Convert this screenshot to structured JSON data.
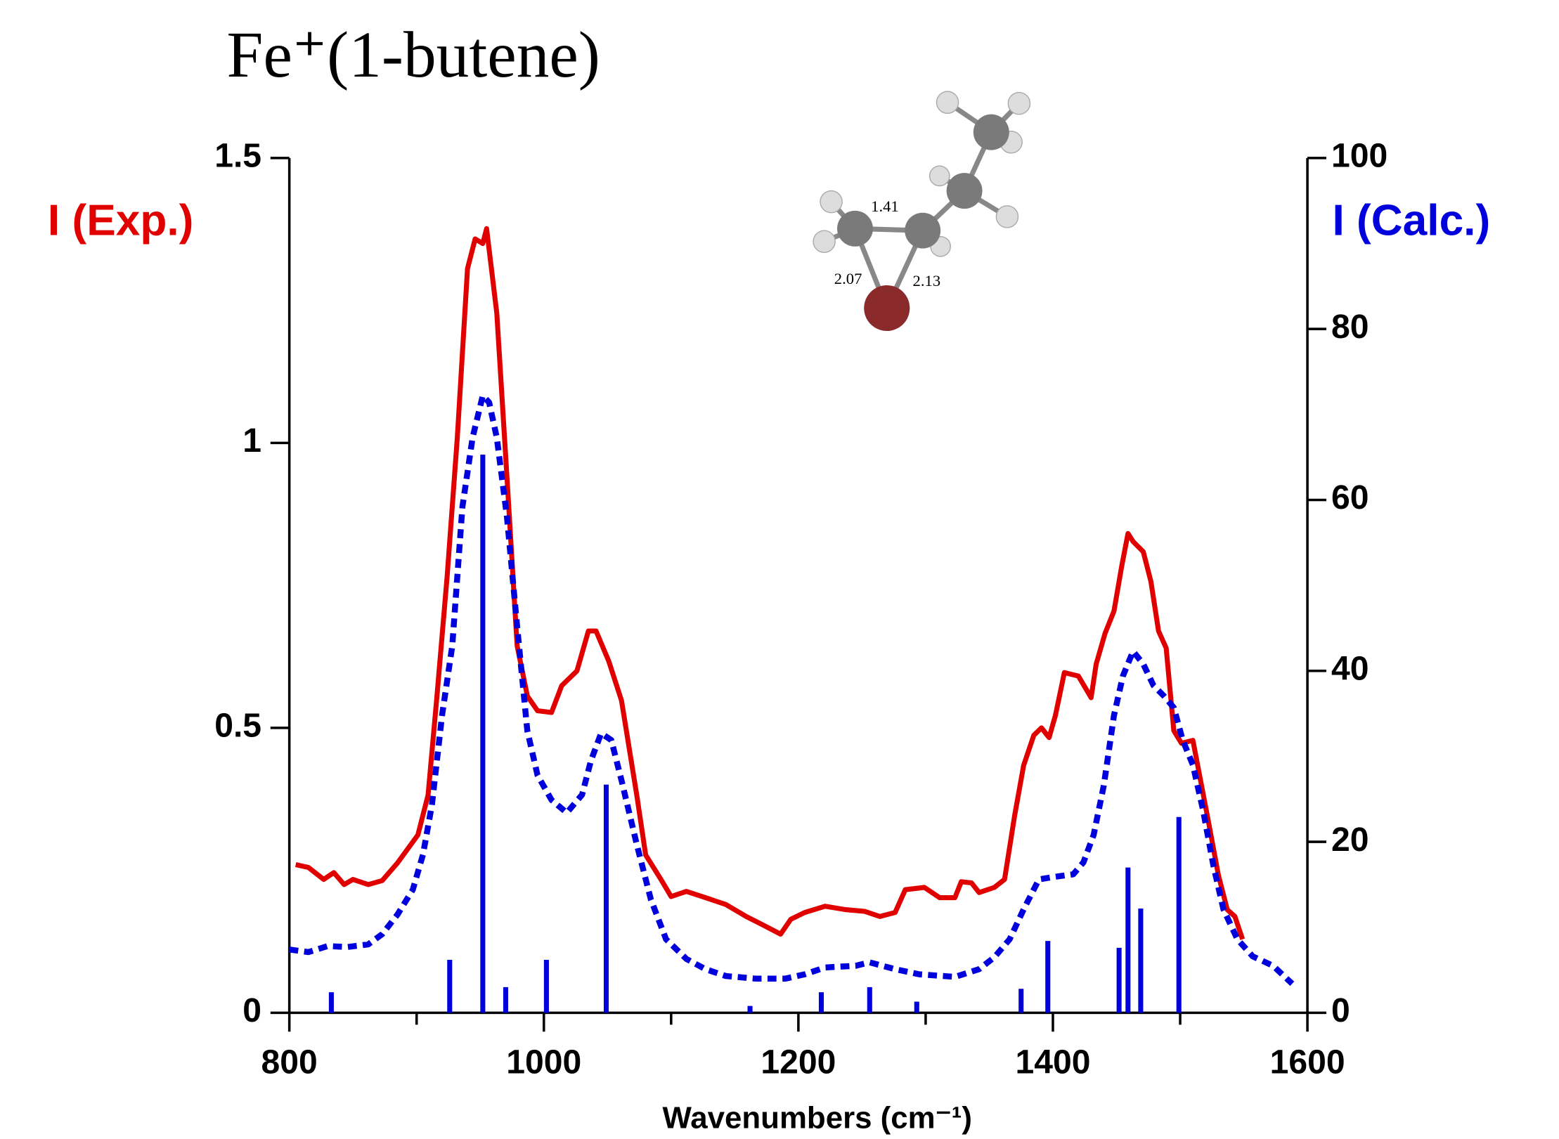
{
  "chart_data": {
    "type": "line",
    "title": "Fe⁺(1-butene)",
    "xlabel": "Wavenumbers (cm⁻¹)",
    "ylabel": "I (Exp.)",
    "y2label": "I (Calc.)",
    "annotations": [
      "1.41",
      "2.07",
      "2.13"
    ],
    "xlim": [
      800,
      1600
    ],
    "xticks": [
      800,
      1000,
      1200,
      1400,
      1600
    ],
    "ylim": [
      0,
      1.5
    ],
    "yticks": [
      0,
      0.5,
      1,
      1.5
    ],
    "y2lim": [
      0,
      100
    ],
    "y2ticks": [
      0,
      20,
      40,
      60,
      80,
      100
    ],
    "series": [
      {
        "color": "#e00000",
        "style": "solid",
        "x": [
          805,
          815,
          827,
          835,
          843,
          850,
          862,
          873,
          885,
          901,
          909,
          916,
          924,
          932,
          940,
          946,
          952,
          955,
          963,
          971,
          979,
          987,
          995,
          1006,
          1014,
          1026,
          1035,
          1041,
          1051,
          1061,
          1073,
          1080,
          1092,
          1100,
          1112,
          1127,
          1143,
          1159,
          1174,
          1186,
          1194,
          1205,
          1221,
          1237,
          1252,
          1264,
          1276,
          1284,
          1299,
          1311,
          1323,
          1328,
          1336,
          1342,
          1354,
          1362,
          1370,
          1377,
          1385,
          1391,
          1397,
          1402,
          1409,
          1420,
          1430,
          1434,
          1441,
          1448,
          1454,
          1459,
          1463,
          1471,
          1477,
          1483,
          1489,
          1495,
          1501,
          1510,
          1522,
          1530,
          1537,
          1543,
          1549
        ],
        "values": [
          0.26,
          0.255,
          0.234,
          0.246,
          0.225,
          0.234,
          0.225,
          0.232,
          0.263,
          0.312,
          0.382,
          0.556,
          0.766,
          1.01,
          1.306,
          1.358,
          1.35,
          1.376,
          1.228,
          0.94,
          0.644,
          0.556,
          0.53,
          0.527,
          0.574,
          0.6,
          0.67,
          0.67,
          0.617,
          0.548,
          0.382,
          0.277,
          0.234,
          0.204,
          0.213,
          0.202,
          0.19,
          0.169,
          0.152,
          0.138,
          0.164,
          0.176,
          0.187,
          0.181,
          0.178,
          0.169,
          0.176,
          0.216,
          0.22,
          0.202,
          0.202,
          0.23,
          0.228,
          0.211,
          0.22,
          0.234,
          0.347,
          0.434,
          0.487,
          0.5,
          0.483,
          0.522,
          0.597,
          0.591,
          0.553,
          0.612,
          0.666,
          0.705,
          0.783,
          0.841,
          0.827,
          0.809,
          0.757,
          0.67,
          0.64,
          0.495,
          0.473,
          0.478,
          0.338,
          0.242,
          0.181,
          0.169,
          0.129
        ]
      },
      {
        "color": "#0000dd",
        "style": "dashed",
        "axis": "y2",
        "x": [
          800,
          815,
          830,
          846,
          862,
          873,
          885,
          897,
          905,
          912,
          920,
          928,
          936,
          944,
          952,
          957,
          963,
          971,
          979,
          987,
          995,
          1006,
          1018,
          1030,
          1037,
          1045,
          1053,
          1061,
          1073,
          1084,
          1096,
          1112,
          1127,
          1143,
          1166,
          1190,
          1205,
          1221,
          1245,
          1256,
          1276,
          1295,
          1323,
          1342,
          1354,
          1366,
          1377,
          1389,
          1401,
          1416,
          1424,
          1432,
          1440,
          1448,
          1455,
          1463,
          1471,
          1479,
          1487,
          1495,
          1502,
          1510,
          1518,
          1526,
          1534,
          1545,
          1557,
          1573,
          1588
        ],
        "values": [
          7.4,
          7.1,
          7.8,
          7.7,
          8.0,
          9.2,
          11.5,
          14.4,
          18.5,
          24.3,
          34.8,
          42.9,
          59.2,
          67.3,
          72.2,
          71.4,
          67.3,
          58.0,
          45.2,
          33.0,
          27.8,
          24.9,
          23.4,
          25.5,
          29.5,
          32.7,
          31.9,
          27.2,
          19.7,
          13.3,
          8.6,
          6.3,
          5.1,
          4.3,
          4.0,
          4.0,
          4.5,
          5.3,
          5.5,
          5.9,
          5.1,
          4.5,
          4.2,
          5.1,
          6.5,
          8.6,
          12.1,
          15.6,
          15.9,
          16.2,
          17.6,
          20.8,
          26.6,
          34.8,
          39.4,
          42.3,
          40.8,
          38.3,
          37.1,
          35.7,
          31.9,
          29.0,
          23.7,
          17.3,
          12.1,
          8.6,
          6.6,
          5.5,
          3.4
        ]
      },
      {
        "color": "#0000dd",
        "style": "stick",
        "axis": "y2",
        "x": [
          833,
          926,
          952,
          970,
          1002,
          1049,
          1162,
          1218,
          1256,
          1293,
          1375,
          1396,
          1452,
          1459,
          1469,
          1499
        ],
        "values": [
          2.4,
          6.2,
          65.3,
          3.0,
          6.2,
          26.7,
          0.8,
          2.4,
          3.0,
          1.3,
          2.8,
          8.4,
          7.6,
          17.0,
          12.2,
          22.9
        ]
      }
    ]
  }
}
